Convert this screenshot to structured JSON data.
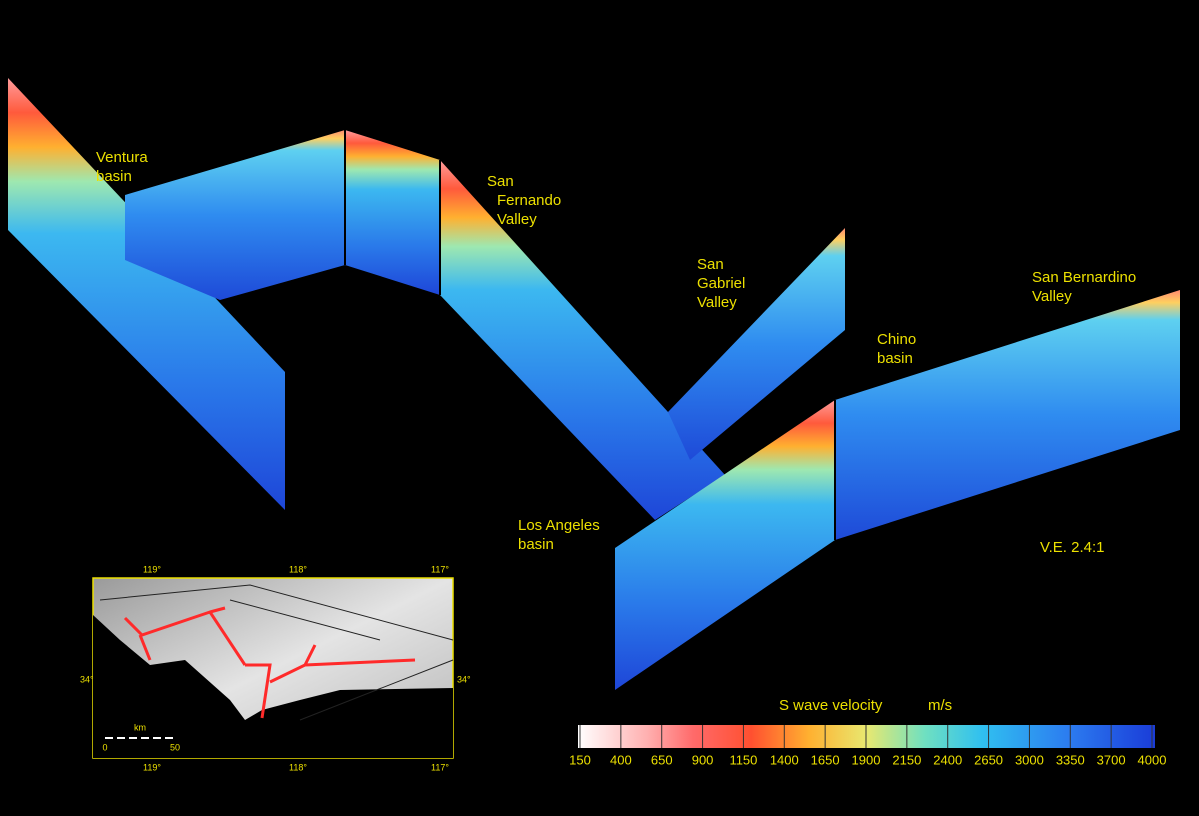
{
  "labels": [
    {
      "lines": [
        "Ventura",
        "basin"
      ]
    },
    {
      "lines": [
        "San",
        "Fernando",
        "Valley"
      ]
    },
    {
      "lines": [
        "San",
        "Gabriel",
        "Valley"
      ]
    },
    {
      "lines": [
        "San Bernardino",
        "Valley"
      ]
    },
    {
      "lines": [
        "Chino",
        "basin"
      ]
    },
    {
      "lines": [
        "Los Angeles",
        "basin"
      ]
    }
  ],
  "ve": "V.E. 2.4:1",
  "colorbar": {
    "title": "S wave velocity",
    "unit": "m/s",
    "ticks": [
      150,
      400,
      650,
      900,
      1150,
      1400,
      1650,
      1900,
      2150,
      2400,
      2650,
      3000,
      3350,
      3700,
      4000
    ]
  },
  "inset": {
    "top_ticks": [
      "119°",
      "118°",
      "117°"
    ],
    "bottom_ticks": [
      "119°",
      "118°",
      "117°"
    ],
    "left_tick": "34°",
    "right_tick": "34°",
    "scale_label": "km",
    "scale_ticks": [
      "0",
      "50"
    ]
  }
}
